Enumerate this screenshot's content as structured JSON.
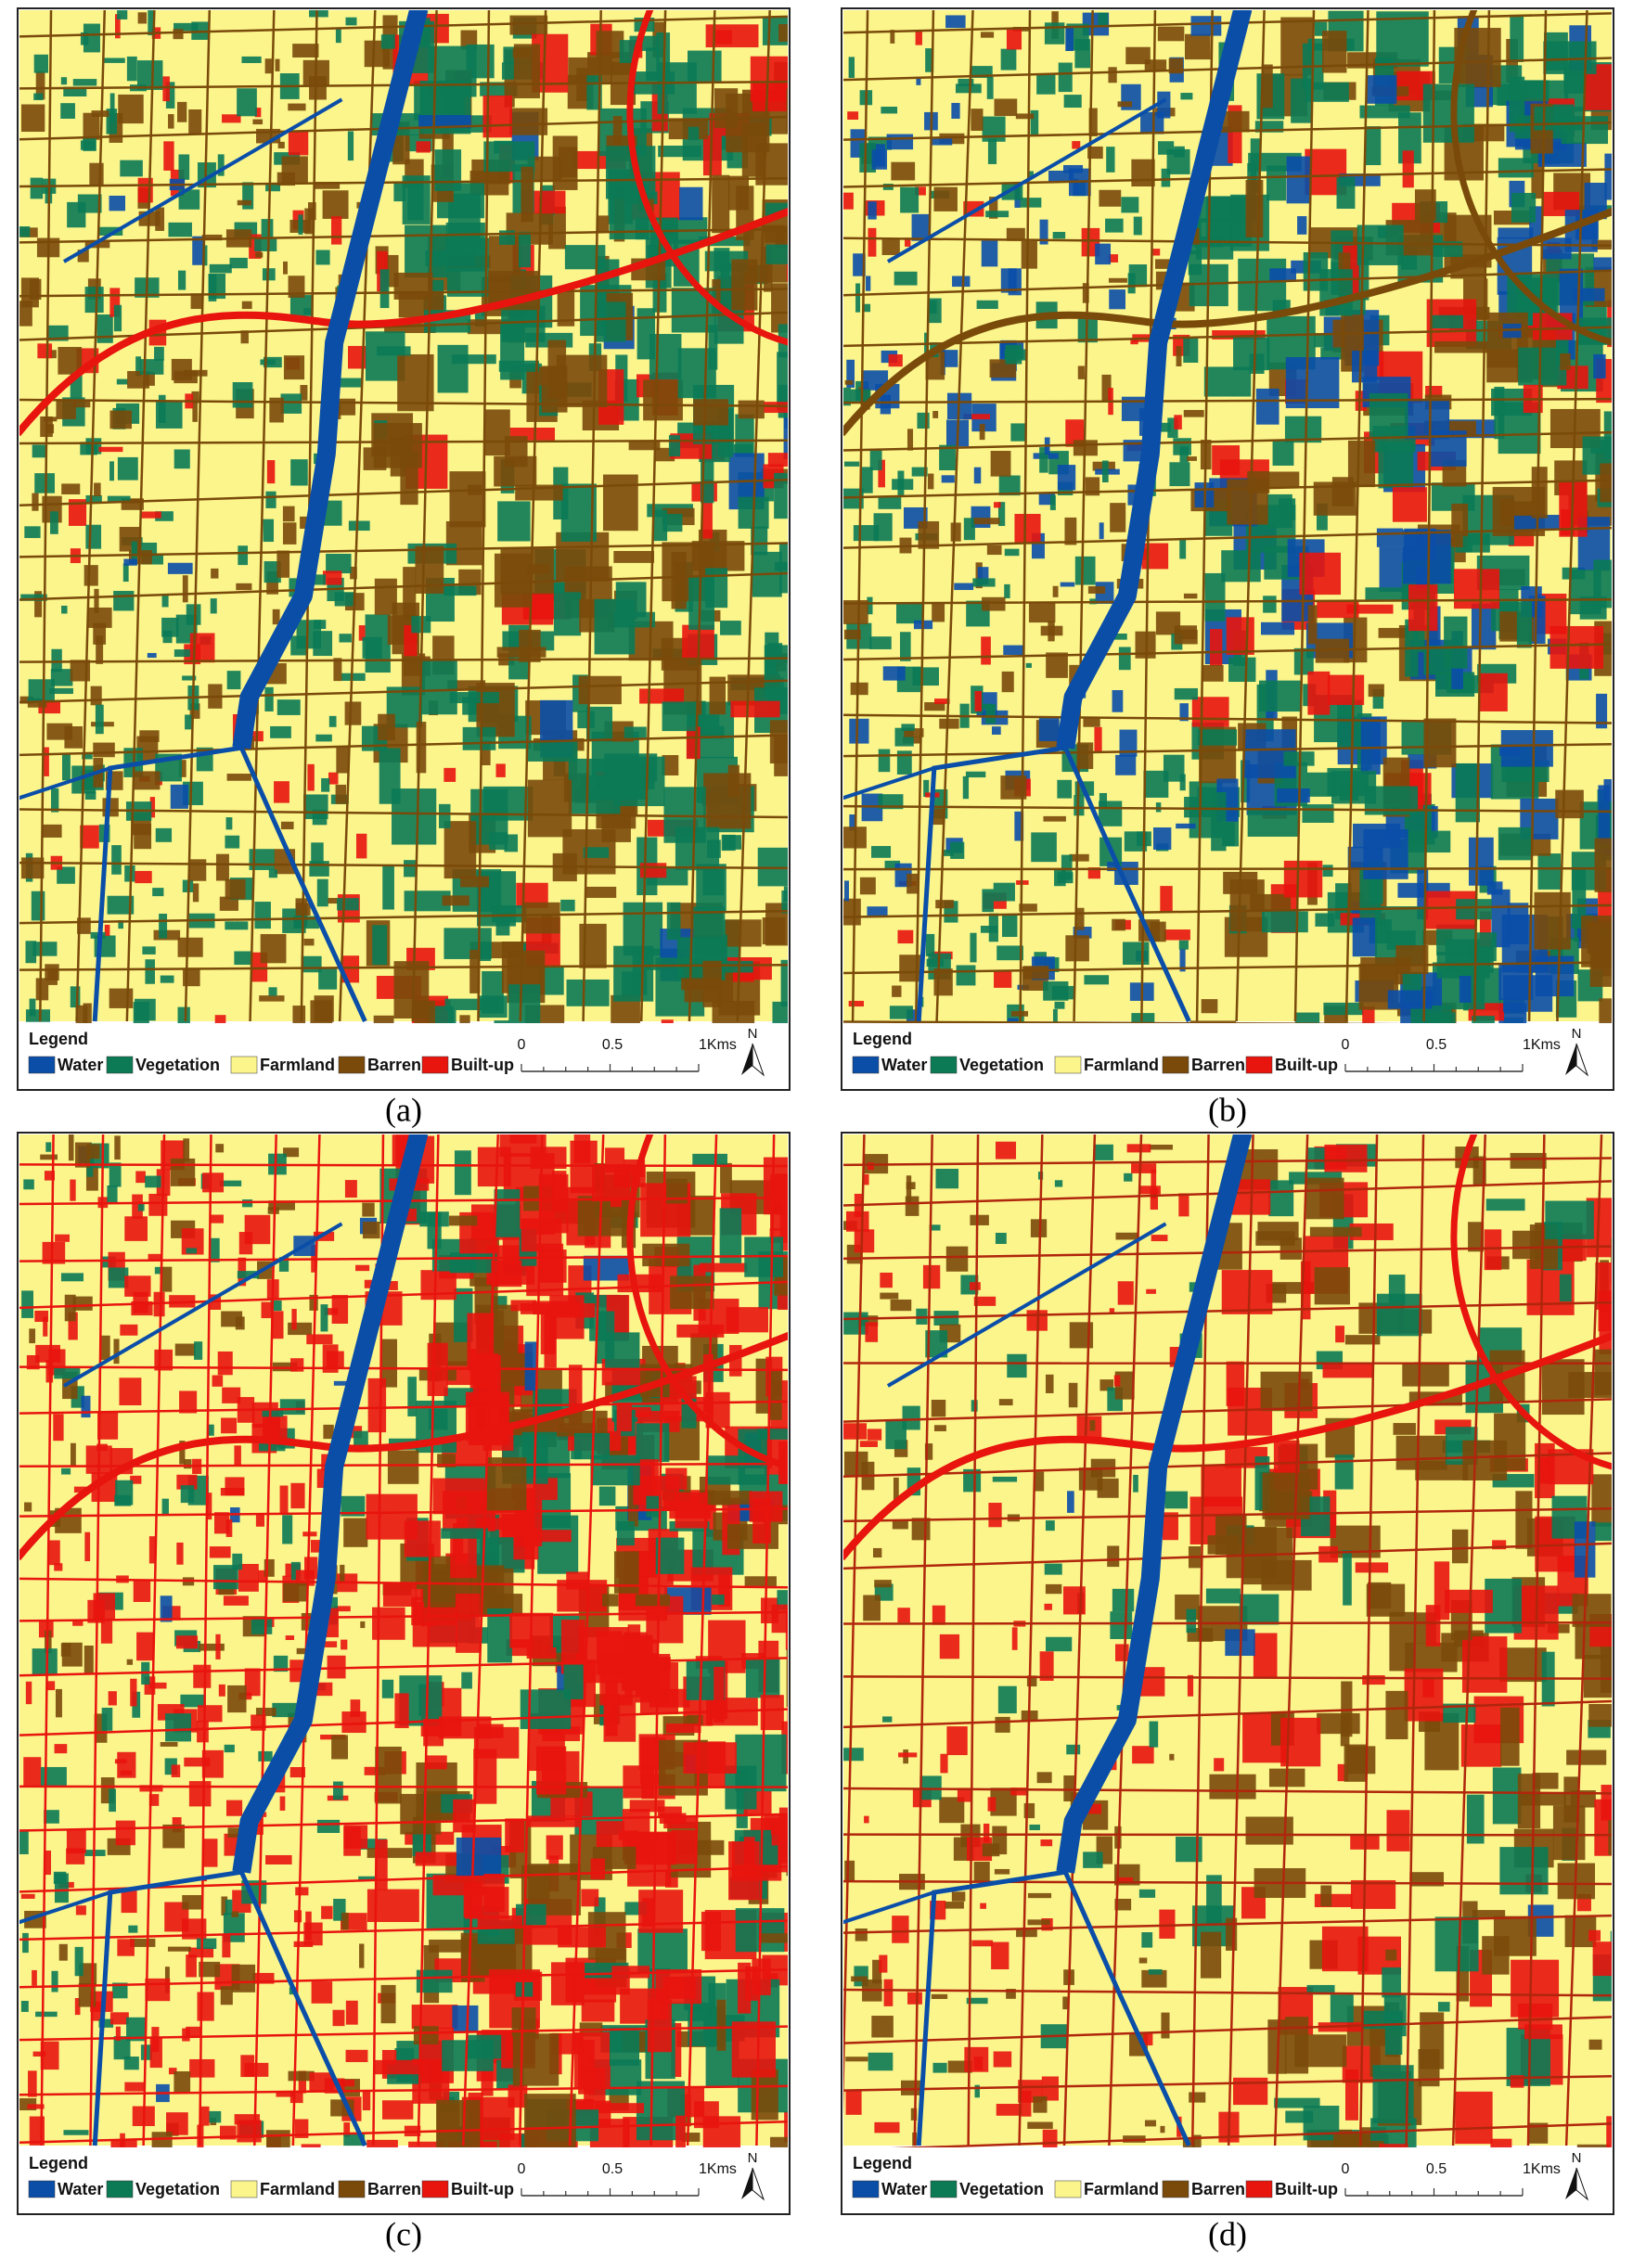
{
  "panels": [
    {
      "caption": "(a)",
      "legend": {
        "title": "Legend",
        "items": [
          {
            "label": "Water",
            "color": "#0a4ea8"
          },
          {
            "label": "Vegetation",
            "color": "#0b7a55"
          },
          {
            "label": "Farmland",
            "color": "#fbf58c"
          },
          {
            "label": "Barren",
            "color": "#7a4a0a"
          },
          {
            "label": "Built-up",
            "color": "#e8140e"
          }
        ]
      },
      "scale_bar": [
        "0",
        "0.5",
        "1Kms"
      ],
      "north": "N"
    },
    {
      "caption": "(b)",
      "legend": {
        "title": "Legend",
        "items": [
          {
            "label": "Water",
            "color": "#0a4ea8"
          },
          {
            "label": "Vegetation",
            "color": "#0b7a55"
          },
          {
            "label": "Farmland",
            "color": "#fbf58c"
          },
          {
            "label": "Barren",
            "color": "#7a4a0a"
          },
          {
            "label": "Built-up",
            "color": "#e8140e"
          }
        ]
      },
      "scale_bar": [
        "0",
        "0.5",
        "1Kms"
      ],
      "north": "N"
    },
    {
      "caption": "(c)",
      "legend": {
        "title": "Legend",
        "items": [
          {
            "label": "Water",
            "color": "#0a4ea8"
          },
          {
            "label": "Vegetation",
            "color": "#0b7a55"
          },
          {
            "label": "Farmland",
            "color": "#fbf58c"
          },
          {
            "label": "Barren",
            "color": "#7a4a0a"
          },
          {
            "label": "Built-up",
            "color": "#e8140e"
          }
        ]
      },
      "scale_bar": [
        "0",
        "0.5",
        "1Kms"
      ],
      "north": "N"
    },
    {
      "caption": "(d)",
      "legend": {
        "title": "Legend",
        "items": [
          {
            "label": "Water",
            "color": "#0a4ea8"
          },
          {
            "label": "Vegetation",
            "color": "#0b7a55"
          },
          {
            "label": "Farmland",
            "color": "#fbf58c"
          },
          {
            "label": "Barren",
            "color": "#7a4a0a"
          },
          {
            "label": "Built-up",
            "color": "#e8140e"
          }
        ]
      },
      "scale_bar": [
        "0",
        "0.5",
        "1Kms"
      ],
      "north": "N"
    }
  ]
}
